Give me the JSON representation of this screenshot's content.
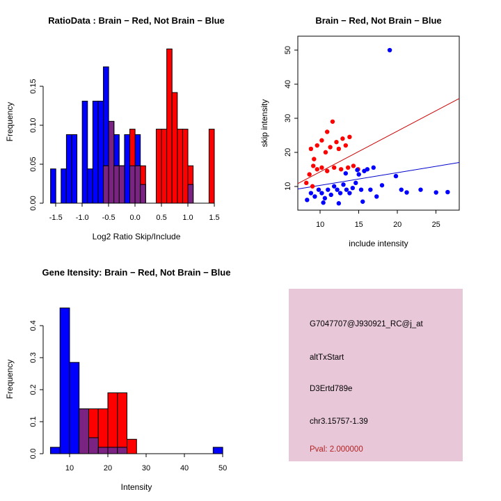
{
  "chart_data": [
    {
      "id": "ratio_hist",
      "type": "bar",
      "title": "RatioData : Brain − Red, Not Brain − Blue",
      "xlabel": "Log2 Ratio Skip/Include",
      "ylabel": "Frequency",
      "xlim": [
        -1.74,
        1.79
      ],
      "ylim": [
        0,
        0.209
      ],
      "xticks": [
        -1.5,
        -1.0,
        -0.5,
        0.0,
        0.5,
        1.0,
        1.5
      ],
      "xtick_labels": [
        "-1.5",
        "-1.0",
        "-0.5",
        "0.0",
        "0.5",
        "1.0",
        "1.5"
      ],
      "yticks": [
        0.0,
        0.05,
        0.1,
        0.15
      ],
      "ytick_labels": [
        "0.00",
        "0.05",
        "0.10",
        "0.15"
      ],
      "bin_width": 0.1,
      "overlap_color": "#7b2382",
      "legend_note": "Brain = red, Not Brain = blue, overlap = purple",
      "series": [
        {
          "name": "not-brain-blue",
          "color": "#0000ff",
          "bin_start": -1.6,
          "values": [
            0.044,
            0,
            0.044,
            0.088,
            0.088,
            0,
            0.131,
            0.044,
            0.131,
            0.131,
            0.175,
            0.105,
            0.088,
            0.048,
            0.088,
            0.048,
            0.088,
            0.024,
            0,
            0,
            0,
            0,
            0,
            0,
            0,
            0,
            0.024
          ]
        },
        {
          "name": "brain-red",
          "color": "#ff0000",
          "bin_start": -0.6,
          "values": [
            0.048,
            0.105,
            0.048,
            0.048,
            0,
            0.095,
            0.048,
            0.048,
            0,
            0,
            0.095,
            0.095,
            0.198,
            0.142,
            0.095,
            0.095,
            0.048,
            0,
            0,
            0,
            0.095
          ]
        }
      ]
    },
    {
      "id": "scatter",
      "type": "scatter",
      "title": "Brain − Red, Not Brain − Blue",
      "xlabel": "include intensity",
      "ylabel": "skip intensity",
      "xlim": [
        7.1,
        28
      ],
      "ylim": [
        3,
        54.1
      ],
      "xticks": [
        10,
        15,
        20,
        25
      ],
      "xtick_labels": [
        "10",
        "15",
        "20",
        "25"
      ],
      "yticks": [
        10,
        20,
        30,
        40,
        50
      ],
      "ytick_labels": [
        "10",
        "20",
        "30",
        "40",
        "50"
      ],
      "series": [
        {
          "name": "brain-red",
          "color": "#ff0000",
          "points": [
            [
              8.8,
              21
            ],
            [
              9.2,
              18
            ],
            [
              9.6,
              22
            ],
            [
              10.2,
              23.5
            ],
            [
              10.7,
              20
            ],
            [
              10.9,
              26
            ],
            [
              11.3,
              21.5
            ],
            [
              11.6,
              29
            ],
            [
              12.1,
              23
            ],
            [
              12.4,
              21
            ],
            [
              12.9,
              24
            ],
            [
              13.3,
              22
            ],
            [
              13.8,
              24.5
            ],
            [
              9.1,
              16
            ],
            [
              9.6,
              15
            ],
            [
              10.2,
              15.5
            ],
            [
              10.9,
              14.5
            ],
            [
              11.8,
              15.5
            ],
            [
              12.7,
              15
            ],
            [
              13.6,
              15.5
            ],
            [
              14.3,
              16
            ],
            [
              14.9,
              15
            ],
            [
              8.6,
              13.5
            ],
            [
              8.2,
              11
            ],
            [
              9.0,
              10
            ]
          ]
        },
        {
          "name": "not-brain-blue",
          "color": "#0000ff",
          "points": [
            [
              8.3,
              6
            ],
            [
              8.8,
              8
            ],
            [
              9.3,
              7
            ],
            [
              9.8,
              9
            ],
            [
              10.2,
              8
            ],
            [
              10.6,
              6.5
            ],
            [
              11,
              9
            ],
            [
              11.4,
              7.5
            ],
            [
              11.8,
              10
            ],
            [
              12.2,
              9
            ],
            [
              12.6,
              8
            ],
            [
              13,
              10.5
            ],
            [
              13.4,
              9
            ],
            [
              13.8,
              8
            ],
            [
              14.2,
              9.5
            ],
            [
              14.6,
              11
            ],
            [
              15,
              13.5
            ],
            [
              15.3,
              9
            ],
            [
              15.7,
              14.5
            ],
            [
              16.1,
              15
            ],
            [
              16.5,
              9
            ],
            [
              16.9,
              15.5
            ],
            [
              17.3,
              7
            ],
            [
              12.4,
              5
            ],
            [
              10.4,
              5.2
            ],
            [
              19,
              50
            ],
            [
              19.8,
              13
            ],
            [
              20.5,
              9
            ],
            [
              21.2,
              8.2
            ],
            [
              23,
              9
            ],
            [
              25,
              8.2
            ],
            [
              26.5,
              8.3
            ],
            [
              18,
              10.3
            ],
            [
              15.5,
              5.5
            ],
            [
              13.3,
              13.8
            ],
            [
              14.8,
              14.8
            ]
          ]
        }
      ],
      "lines": [
        {
          "name": "brain-fit-line",
          "color": "#cc0000",
          "points": [
            [
              7.1,
              10.8
            ],
            [
              28,
              35.8
            ]
          ]
        },
        {
          "name": "not-brain-fit-line",
          "color": "#0000cc",
          "points": [
            [
              7.1,
              9.2
            ],
            [
              28,
              17
            ]
          ]
        }
      ]
    },
    {
      "id": "gene_hist",
      "type": "bar",
      "title": "Gene Itensity: Brain − Red, Not Brain − Blue",
      "xlabel": "Intensity",
      "ylabel": "Frequency",
      "xlim": [
        3.1,
        51.8
      ],
      "ylim": [
        0,
        0.465
      ],
      "xticks": [
        10,
        20,
        30,
        40,
        50
      ],
      "xtick_labels": [
        "10",
        "20",
        "30",
        "40",
        "50"
      ],
      "yticks": [
        0.0,
        0.1,
        0.2,
        0.3,
        0.4
      ],
      "ytick_labels": [
        "0.0",
        "0.1",
        "0.2",
        "0.3",
        "0.4"
      ],
      "bin_width": 2.5,
      "overlap_color": "#7b2382",
      "legend_note": "Brain = red, Not Brain = blue, overlap = purple",
      "series": [
        {
          "name": "not-brain-blue",
          "color": "#0000ff",
          "bin_start": 5,
          "values": [
            0.02,
            0.455,
            0.285,
            0.14,
            0.05,
            0.02,
            0.02,
            0.02,
            0,
            0,
            0,
            0,
            0,
            0,
            0,
            0,
            0,
            0.02
          ]
        },
        {
          "name": "brain-red",
          "color": "#ff0000",
          "bin_start": 12.5,
          "values": [
            0.14,
            0.14,
            0.14,
            0.19,
            0.19,
            0.045
          ]
        }
      ]
    }
  ],
  "info_panel": {
    "background": "#e8c7d8",
    "lines": [
      {
        "text": "G7047707@J930921_RC@j_at",
        "color": "#000000"
      },
      {
        "text": "altTxStart",
        "color": "#000000"
      },
      {
        "text": "D3Ertd789e",
        "color": "#000000"
      },
      {
        "text": "chr3.15757-1.39",
        "color": "#000000"
      },
      {
        "text": "Pval: 2.000000",
        "color": "#b22222"
      }
    ]
  }
}
